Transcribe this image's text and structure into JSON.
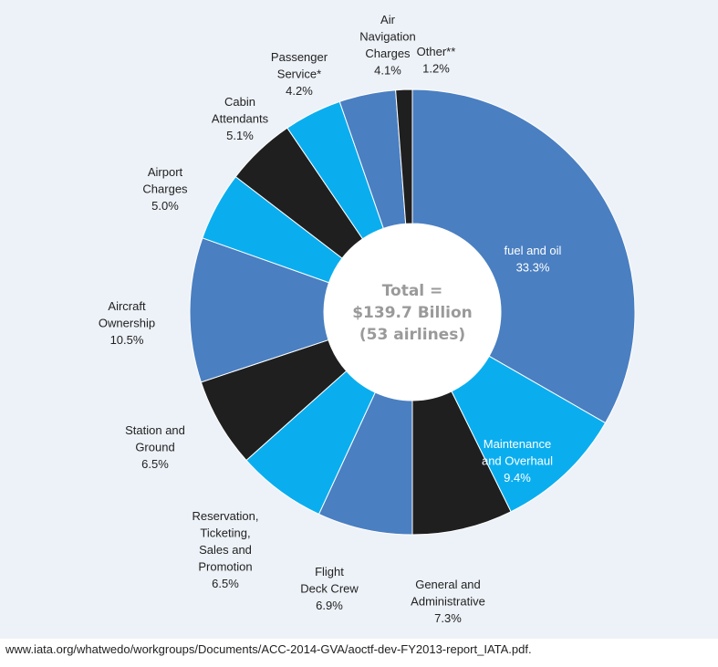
{
  "chart_data": {
    "type": "pie",
    "center_label": [
      "Total =",
      "$139.7 Billion",
      "(53 airlines)"
    ],
    "slices": [
      {
        "label": [
          "fuel and oil",
          "33.3%"
        ],
        "value": 33.3,
        "color": "#4a7fc1",
        "inside": true
      },
      {
        "label": [
          "Maintenance",
          "and Overhaul",
          "9.4%"
        ],
        "value": 9.4,
        "color": "#0aaeef",
        "inside": true
      },
      {
        "label": [
          "General and",
          "Administrative",
          "7.3%"
        ],
        "value": 7.3,
        "color": "#1f1f1f"
      },
      {
        "label": [
          "Flight",
          "Deck Crew",
          "6.9%"
        ],
        "value": 6.9,
        "color": "#4a7fc1"
      },
      {
        "label": [
          "Reservation,",
          "Ticketing,",
          "Sales and",
          "Promotion",
          "6.5%"
        ],
        "value": 6.5,
        "color": "#0aaeef"
      },
      {
        "label": [
          "Station and",
          "Ground",
          "6.5%"
        ],
        "value": 6.5,
        "color": "#1f1f1f"
      },
      {
        "label": [
          "Aircraft",
          "Ownership",
          "10.5%"
        ],
        "value": 10.5,
        "color": "#4a7fc1"
      },
      {
        "label": [
          "Airport",
          "Charges",
          "5.0%"
        ],
        "value": 5.0,
        "color": "#0aaeef"
      },
      {
        "label": [
          "Cabin",
          "Attendants",
          "5.1%"
        ],
        "value": 5.1,
        "color": "#1f1f1f"
      },
      {
        "label": [
          "Passenger",
          "Service*",
          "4.2%"
        ],
        "value": 4.2,
        "color": "#0aaeef"
      },
      {
        "label": [
          "Air",
          "Navigation",
          "Charges",
          "4.1%"
        ],
        "value": 4.1,
        "color": "#4a7fc1"
      },
      {
        "label": [
          "Other**",
          "1.2%"
        ],
        "value": 1.2,
        "color": "#1f1f1f"
      }
    ]
  },
  "source_text": "www.iata.org/whatwedo/workgroups/Documents/ACC-2014-GVA/aoctf-dev-FY2013-report_IATA.pdf."
}
